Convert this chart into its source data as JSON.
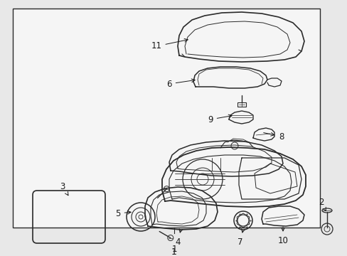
{
  "bg_color": "#e8e8e8",
  "box_color": "#ffffff",
  "box_bg": "#f5f5f5",
  "line_color": "#2a2a2a",
  "font_size": 8.5,
  "font_color": "#1a1a1a",
  "figsize": [
    4.89,
    3.6
  ],
  "dpi": 100
}
